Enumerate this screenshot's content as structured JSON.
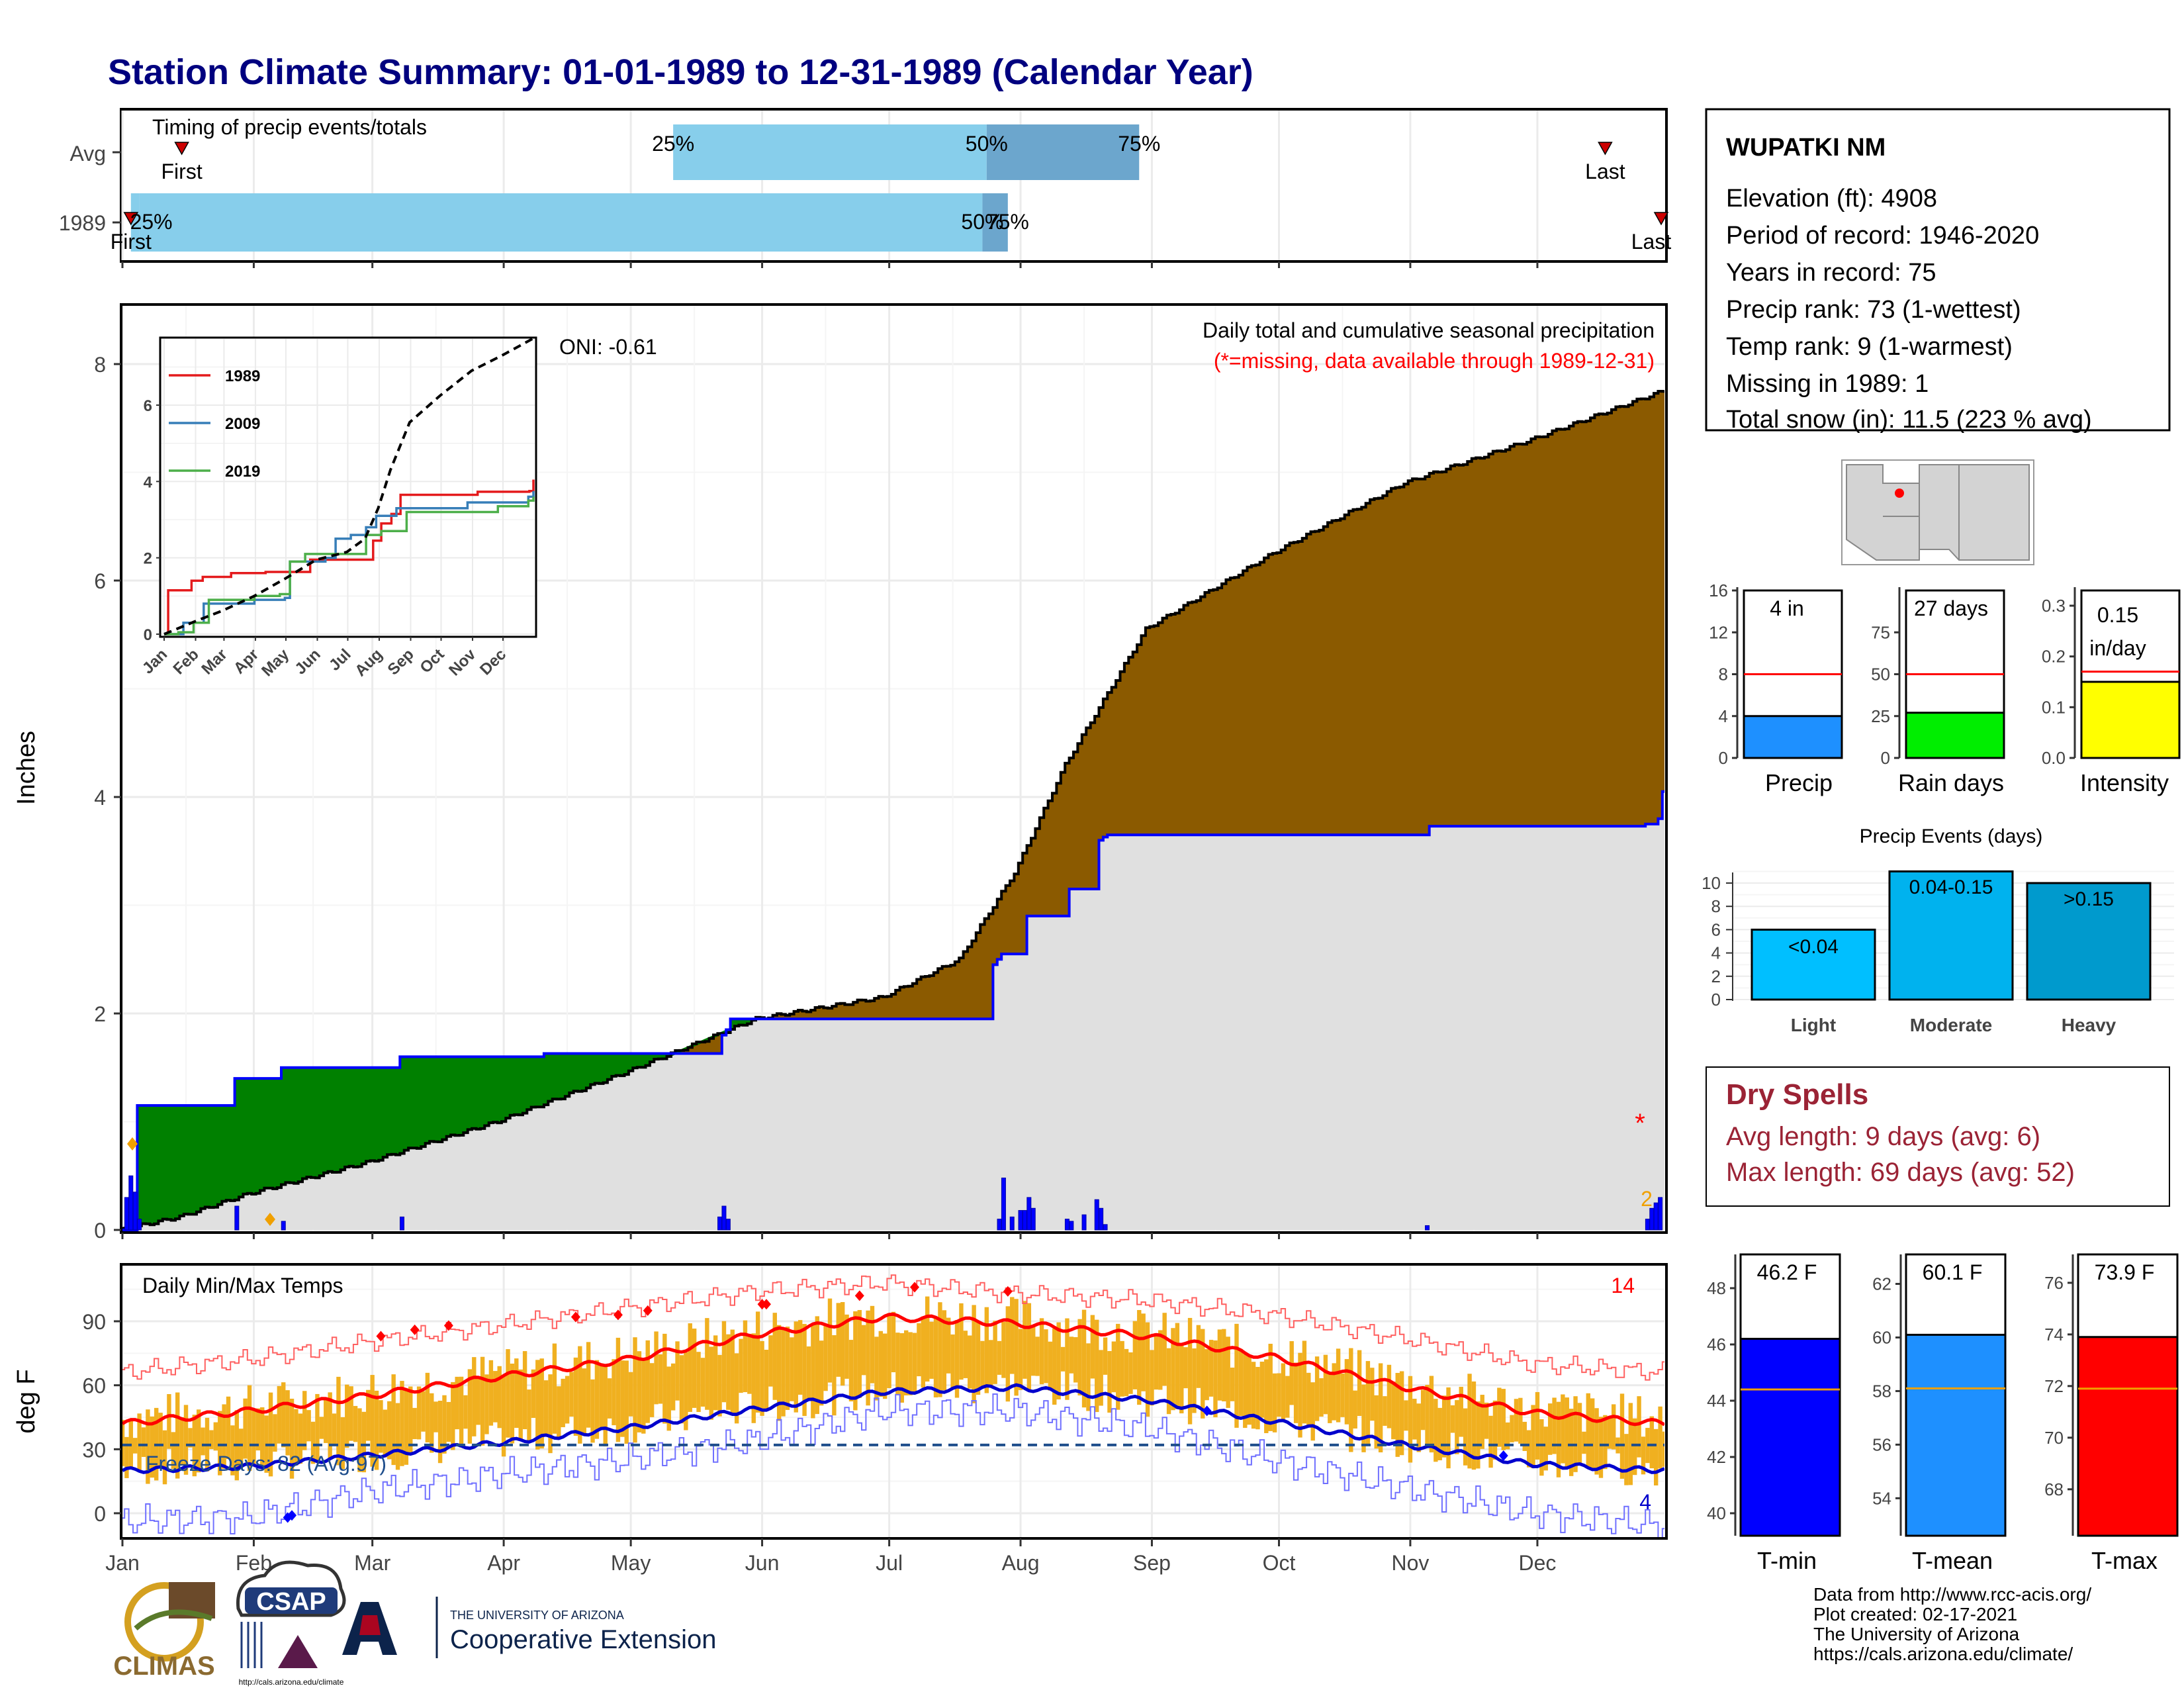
{
  "title": "Station Climate Summary: 01-01-1989 to 12-31-1989 (Calendar Year)",
  "colors": {
    "title": "#00007f",
    "wet": "#8b5a00",
    "dry": "#008000",
    "cum_fill": "#e0e0e0",
    "cum_line": "#0000ff",
    "q_light": "#87ceeb",
    "q_dark": "#6ca6cd",
    "temp_bar": "#f0b020",
    "tmax": "#ff0000",
    "tmin": "#0000cc",
    "dry_spell": "#9b2335",
    "precip": "#1e90ff",
    "raindays": "#00ee00",
    "intensity": "#ffff00",
    "ev_light": "#00bfff",
    "ev_mod": "#00b2ee",
    "ev_heavy": "#009acd"
  },
  "timing": {
    "title": "Timing of precip events/totals",
    "rows": [
      {
        "label": "Avg",
        "first_label": "First",
        "last_label": "Last",
        "p25_label": "25%",
        "p50_label": "50%",
        "p75_label": "75%",
        "first": "Jan 15",
        "p25": "May 11",
        "p50": "Jul 24",
        "p75": "Aug 29",
        "last": "Dec 17"
      },
      {
        "label": "1989",
        "first_label": "First",
        "last_label": "Last",
        "p25_label": "25%",
        "p50_label": "50%",
        "p75_label": "75%",
        "first": "Jan 3",
        "p25": "Jan 5",
        "p50": "Jul 23",
        "p75": "Jul 29",
        "last": "Dec 31"
      }
    ]
  },
  "precip_panel": {
    "ylabel": "Inches",
    "title": "Daily total and cumulative seasonal precipitation",
    "subtitle": "(*=missing, data available through 1989-12-31)",
    "oni": "ONI: -0.61",
    "missing_marker": "*",
    "snow_count": "2",
    "yticks": [
      "0",
      "2",
      "4",
      "6",
      "8"
    ]
  },
  "inset": {
    "legend": [
      "1989",
      "2009",
      "2019"
    ],
    "yticks": [
      "0",
      "2",
      "4",
      "6"
    ],
    "xticks": [
      "Jan",
      "Feb",
      "Mar",
      "Apr",
      "May",
      "Jun",
      "Jul",
      "Aug",
      "Sep",
      "Oct",
      "Nov",
      "Dec"
    ]
  },
  "temp_panel": {
    "ylabel": "deg F",
    "title": "Daily Min/Max Temps",
    "freeze": "Freeze Days: 82 (Avg:97)",
    "record_high_count": "14",
    "record_low_count": "4",
    "yticks": [
      "0",
      "30",
      "60",
      "90"
    ]
  },
  "months": [
    "Jan",
    "Feb",
    "Mar",
    "Apr",
    "May",
    "Jun",
    "Jul",
    "Aug",
    "Sep",
    "Oct",
    "Nov",
    "Dec"
  ],
  "station": {
    "name": "WUPATKI NM",
    "lines": [
      "Elevation (ft): 4908",
      "Period of record: 1946-2020",
      "Years in record: 75",
      "Precip rank: 73 (1-wettest)",
      "Temp rank: 9 (1-warmest)",
      "Missing in 1989: 1",
      "Total snow (in): 11.5 (223 % avg)"
    ]
  },
  "gauges": {
    "precip": {
      "label": "Precip",
      "value_text": "4 in"
    },
    "raindays": {
      "label": "Rain days",
      "value_text": "27 days"
    },
    "intensity": {
      "label": "Intensity",
      "value_text_1": "0.15",
      "value_text_2": "in/day"
    }
  },
  "events": {
    "title": "Precip Events (days)",
    "cats": [
      {
        "label": "Light",
        "bar_label": "<0.04"
      },
      {
        "label": "Moderate",
        "bar_label": "0.04-0.15"
      },
      {
        "label": "Heavy",
        "bar_label": ">0.15"
      }
    ]
  },
  "dry_spells": {
    "title": "Dry Spells",
    "avg": "Avg length: 9 days (avg: 6)",
    "max": "Max length: 69 days (avg: 52)"
  },
  "temp_gauges": [
    {
      "label": "T-min",
      "value_text": "46.2 F"
    },
    {
      "label": "T-mean",
      "value_text": "60.1 F"
    },
    {
      "label": "T-max",
      "value_text": "73.9 F"
    }
  ],
  "credits": [
    "Data from http://www.rcc-acis.org/",
    "Plot created: 02-17-2021",
    "The University of Arizona",
    "https://cals.arizona.edu/climate/"
  ],
  "logos": {
    "climas": "CLIMAS",
    "csap": "CSAP",
    "ua_small": "THE UNIVERSITY OF ARIZONA",
    "ua_big": "Cooperative Extension",
    "csap_url": "http://cals.arizona.edu/climate"
  },
  "chart_data": [
    {
      "type": "area",
      "title": "Daily total and cumulative seasonal precipitation",
      "ylabel": "Inches",
      "ylim": [
        0,
        8.5
      ],
      "x_unit": "day of year 1989",
      "series": [
        {
          "name": "cumulative 1989",
          "x": [
            1,
            4,
            5,
            27,
            28,
            38,
            39,
            66,
            67,
            100,
            101,
            142,
            143,
            144,
            145,
            206,
            207,
            208,
            209,
            214,
            215,
            224,
            225,
            231,
            232,
            233,
            234,
            309,
            310,
            360,
            361,
            364,
            365
          ],
          "values": [
            0,
            0,
            1.15,
            1.15,
            1.4,
            1.4,
            1.5,
            1.5,
            1.6,
            1.6,
            1.63,
            1.63,
            1.8,
            1.85,
            1.95,
            1.95,
            2.45,
            2.5,
            2.55,
            2.55,
            2.9,
            2.9,
            3.15,
            3.15,
            3.6,
            3.63,
            3.65,
            3.65,
            3.73,
            3.73,
            3.75,
            3.8,
            4.05
          ]
        },
        {
          "name": "cumulative average",
          "x": [
            1,
            15,
            31,
            59,
            90,
            120,
            151,
            181,
            199,
            212,
            224,
            243,
            273,
            304,
            334,
            365
          ],
          "values": [
            0,
            0.12,
            0.33,
            0.62,
            1.0,
            1.45,
            1.95,
            2.15,
            2.5,
            3.3,
            4.3,
            5.55,
            6.25,
            6.9,
            7.3,
            7.75
          ]
        }
      ],
      "daily_precip_bars": {
        "x": [
          2,
          3,
          4,
          5,
          28,
          39,
          67,
          142,
          143,
          144,
          208,
          209,
          211,
          213,
          214,
          215,
          216,
          224,
          225,
          228,
          231,
          232,
          233,
          309,
          361,
          362,
          363,
          364
        ],
        "values": [
          0.3,
          0.5,
          0.35,
          0.1,
          0.22,
          0.08,
          0.12,
          0.12,
          0.22,
          0.1,
          0.1,
          0.48,
          0.12,
          0.18,
          0.18,
          0.3,
          0.2,
          0.1,
          0.08,
          0.14,
          0.28,
          0.2,
          0.05,
          0.04,
          0.1,
          0.2,
          0.25,
          0.3
        ]
      }
    },
    {
      "type": "line",
      "title": "",
      "ylim": [
        0,
        8
      ],
      "series": [
        {
          "name": "1989",
          "x": [
            1,
            4,
            5,
            27,
            28,
            38,
            39,
            66,
            67,
            100,
            101,
            142,
            145,
            207,
            215,
            225,
            234,
            310,
            361,
            365
          ],
          "values": [
            0,
            0,
            1.15,
            1.15,
            1.4,
            1.4,
            1.5,
            1.5,
            1.6,
            1.6,
            1.63,
            1.63,
            1.95,
            2.45,
            2.9,
            3.15,
            3.65,
            3.73,
            3.75,
            4.05
          ]
        },
        {
          "name": "2009",
          "x": [
            1,
            20,
            40,
            90,
            120,
            125,
            160,
            170,
            185,
            200,
            210,
            230,
            300,
            360,
            365
          ],
          "values": [
            0,
            0.3,
            0.8,
            0.9,
            0.95,
            1.9,
            2.0,
            2.5,
            2.6,
            2.8,
            3.1,
            3.3,
            3.45,
            3.6,
            3.75
          ]
        },
        {
          "name": "2019",
          "x": [
            1,
            15,
            30,
            45,
            90,
            115,
            125,
            140,
            190,
            200,
            215,
            240,
            330,
            360,
            365
          ],
          "values": [
            0,
            0.05,
            0.3,
            0.9,
            1.0,
            1.05,
            1.9,
            2.1,
            2.1,
            2.6,
            2.7,
            3.2,
            3.35,
            3.5,
            3.6
          ]
        },
        {
          "name": "avg",
          "x": [
            1,
            31,
            59,
            90,
            120,
            151,
            181,
            199,
            212,
            224,
            243,
            273,
            304,
            334,
            365
          ],
          "values": [
            0,
            0.33,
            0.62,
            1.0,
            1.45,
            1.95,
            2.15,
            2.5,
            3.3,
            4.3,
            5.55,
            6.25,
            6.9,
            7.3,
            7.75
          ]
        }
      ]
    },
    {
      "type": "bar",
      "title": "Daily Min/Max Temps",
      "ylabel": "deg F",
      "ylim": [
        -10,
        115
      ],
      "series": [
        {
          "name": "avg max",
          "x": [
            1,
            31,
            59,
            90,
            120,
            151,
            181,
            212,
            243,
            273,
            304,
            334,
            365
          ],
          "values": [
            42,
            48,
            55,
            64,
            72,
            84,
            92,
            89,
            83,
            73,
            59,
            47,
            42
          ]
        },
        {
          "name": "avg min",
          "x": [
            1,
            31,
            59,
            90,
            120,
            151,
            181,
            212,
            243,
            273,
            304,
            334,
            365
          ],
          "values": [
            20,
            22,
            27,
            33,
            40,
            49,
            57,
            59,
            53,
            43,
            32,
            23,
            20
          ]
        },
        {
          "name": "record max",
          "x": [
            1,
            31,
            59,
            90,
            120,
            151,
            181,
            212,
            243,
            273,
            304,
            334,
            365
          ],
          "values": [
            66,
            72,
            80,
            88,
            96,
            104,
            108,
            103,
            100,
            93,
            82,
            70,
            66
          ]
        },
        {
          "name": "record min",
          "x": [
            1,
            31,
            59,
            90,
            120,
            151,
            181,
            212,
            243,
            273,
            304,
            334,
            365
          ],
          "values": [
            -4,
            -2,
            10,
            18,
            25,
            34,
            48,
            48,
            40,
            25,
            12,
            0,
            -6
          ]
        }
      ],
      "freeze_threshold": 32
    },
    {
      "type": "bar",
      "title": "",
      "categories": [
        "Precip",
        "Rain days",
        "Intensity"
      ],
      "values": [
        4,
        27,
        0.15
      ],
      "averages": [
        8,
        50,
        0.17
      ],
      "ylims": [
        [
          0,
          16
        ],
        [
          0,
          100
        ],
        [
          0,
          0.33
        ]
      ]
    },
    {
      "type": "bar",
      "title": "Precip Events (days)",
      "categories": [
        "Light",
        "Moderate",
        "Heavy"
      ],
      "values": [
        6,
        11,
        10
      ],
      "ylim": [
        0,
        11
      ]
    },
    {
      "type": "bar",
      "title": "",
      "categories": [
        "T-min",
        "T-mean",
        "T-max"
      ],
      "values": [
        46.2,
        60.1,
        73.9
      ],
      "averages": [
        44.4,
        58.1,
        71.9
      ],
      "ylims": [
        [
          39.2,
          49.2
        ],
        [
          52.6,
          63.1
        ],
        [
          66.2,
          77.1
        ]
      ]
    }
  ]
}
